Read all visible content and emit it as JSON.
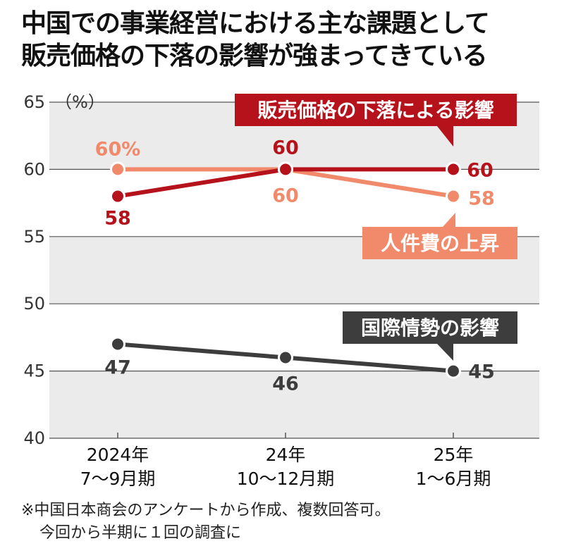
{
  "title_lines": [
    "中国での事業経営における主な課題として",
    "販売価格の下落の影響が強まってきている"
  ],
  "notes": [
    "※中国日本商会のアンケートから作成、複数回答可。",
    "今回から半期に１回の調査に"
  ],
  "colors": {
    "price": "#b5121b",
    "labor": "#f08a6a",
    "intl": "#3d3d3d",
    "band": "#ebebeb"
  },
  "chart_data": {
    "type": "line",
    "unit": "（%）",
    "ylim": [
      40,
      65
    ],
    "yticks": [
      "40",
      "45",
      "50",
      "55",
      "60",
      "65"
    ],
    "categories": [
      [
        "2024年",
        "7～9月期"
      ],
      [
        "24年",
        "10～12月期"
      ],
      [
        "25年",
        "1～6月期"
      ]
    ],
    "series": [
      {
        "name": "販売価格の下落による影響",
        "key": "price",
        "values": [
          58,
          60,
          60
        ],
        "labels": [
          "58",
          "60",
          "60"
        ]
      },
      {
        "name": "人件費の上昇",
        "key": "labor",
        "values": [
          60,
          60,
          58
        ],
        "labels": [
          "60%",
          "60",
          "58"
        ]
      },
      {
        "name": "国際情勢の影響",
        "key": "intl",
        "values": [
          47,
          46,
          45
        ],
        "labels": [
          "47",
          "46",
          "45"
        ]
      }
    ]
  }
}
